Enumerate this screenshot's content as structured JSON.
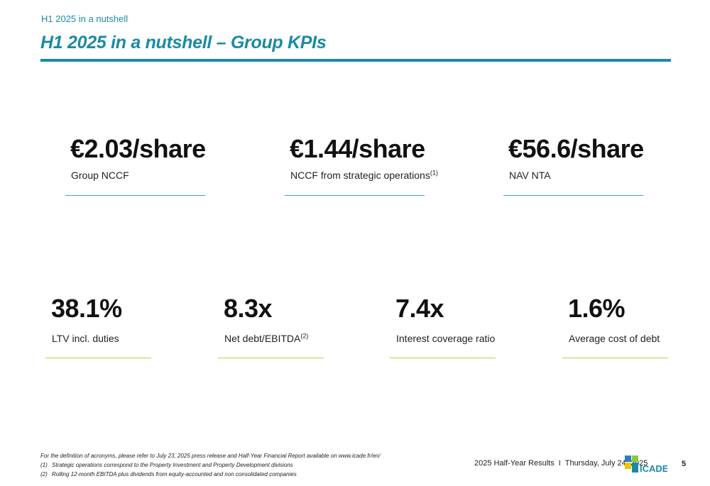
{
  "header": {
    "kicker": "H1 2025 in a nutshell",
    "title": "H1 2025 in a nutshell – Group KPIs"
  },
  "kpis_top": [
    {
      "value": "€2.03/share",
      "label": "Group NCCF",
      "footnote": ""
    },
    {
      "value": "€1.44/share",
      "label": "NCCF from strategic operations",
      "footnote": "(1)"
    },
    {
      "value": "€56.6/share",
      "label": "NAV NTA",
      "footnote": ""
    }
  ],
  "kpis_bottom": [
    {
      "value": "38.1%",
      "label": "LTV incl. duties",
      "footnote": ""
    },
    {
      "value": "8.3x",
      "label": "Net debt/EBITDA",
      "footnote": "(2)"
    },
    {
      "value": "7.4x",
      "label": "Interest coverage ratio",
      "footnote": ""
    },
    {
      "value": "1.6%",
      "label": "Average cost of debt",
      "footnote": ""
    }
  ],
  "notes": {
    "definition": "For the definition of acronyms, please refer to July 23, 2025 press release and Half-Year Financial Report available on www.icade.fr/en/",
    "footnotes": [
      {
        "num": "(1)",
        "text": "Strategic operations correspond to the Property Investment and Property Development divisions"
      },
      {
        "num": "(2)",
        "text": "Rolling 12-month EBITDA plus dividends from equity-accounted and non consolidated companies"
      }
    ]
  },
  "footer": {
    "event": "2025 Half-Year Results",
    "separator": "I",
    "date": "Thursday, July 24, 2025",
    "logo_text": "ICADE",
    "page_number": "5"
  },
  "colors": {
    "accent_teal": "#1a8aa5",
    "rule_blue": "#3aa7c4",
    "rule_green": "#b7d24a",
    "logo_blue": "#2f7dbf",
    "logo_green": "#8cc63f",
    "logo_yellow": "#f2c500",
    "logo_teal": "#1a8aa5"
  }
}
